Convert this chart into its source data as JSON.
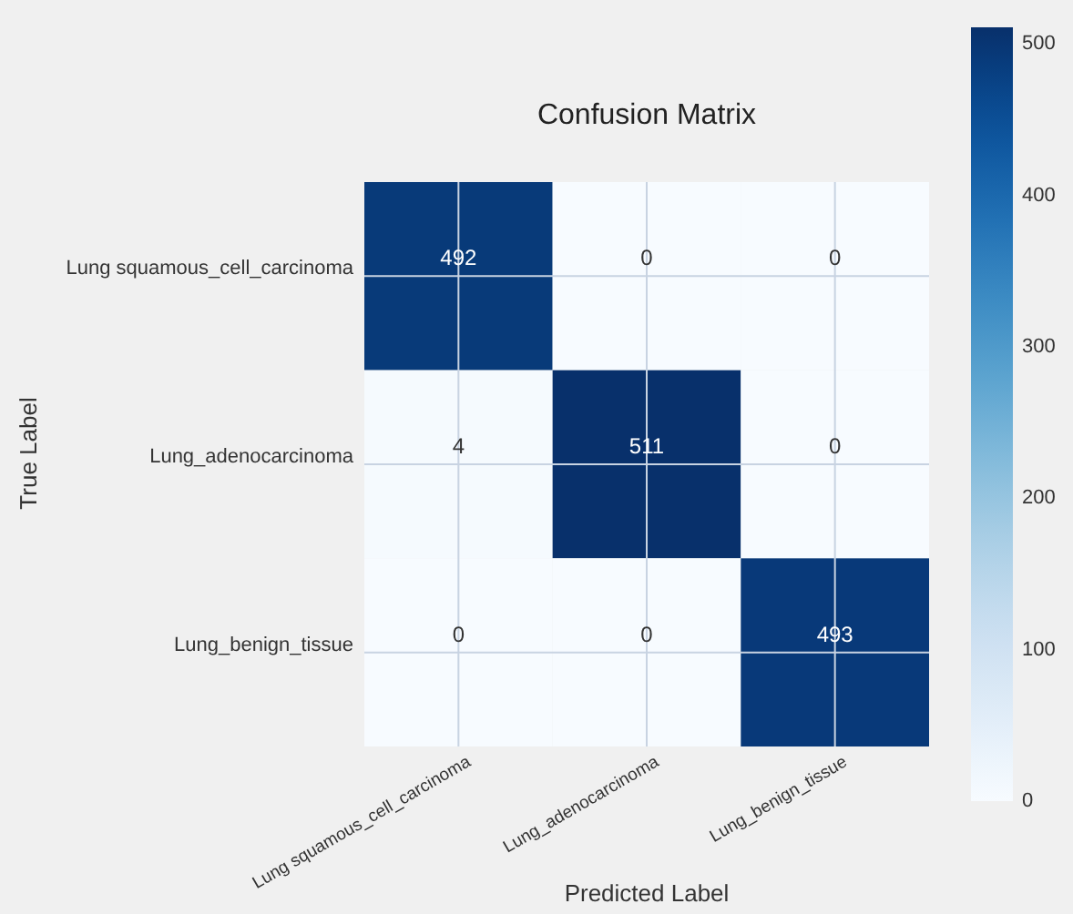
{
  "chart_data": {
    "type": "heatmap",
    "title": "Confusion Matrix",
    "xlabel": "Predicted Label",
    "ylabel": "True Label",
    "categories": [
      "Lung squamous_cell_carcinoma",
      "Lung_adenocarcinoma",
      "Lung_benign_tissue"
    ],
    "y_categories": [
      "Lung squamous_cell_carcinoma",
      "Lung_adenocarcinoma",
      "Lung_benign_tissue"
    ],
    "cells": [
      [
        492,
        0,
        0
      ],
      [
        4,
        511,
        0
      ],
      [
        0,
        0,
        493
      ]
    ],
    "clim": [
      0,
      511
    ],
    "cticks": [
      0,
      100,
      200,
      300,
      400,
      500
    ],
    "data_labels": true,
    "grid": true
  }
}
